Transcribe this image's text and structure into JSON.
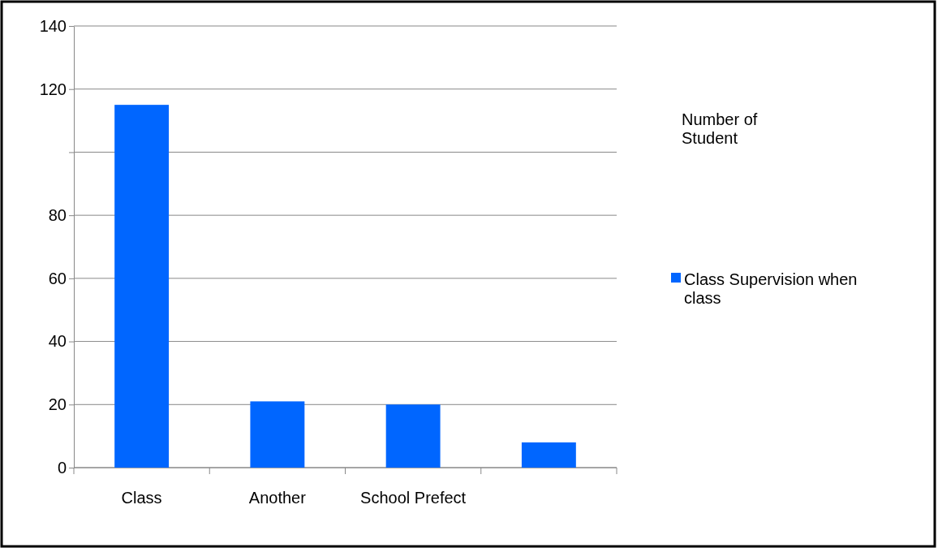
{
  "chart_data": {
    "type": "bar",
    "title": "Number of Student",
    "categories": [
      "Class",
      "Another",
      "School Prefect",
      null
    ],
    "series": [
      {
        "name": "Class Supervision when class",
        "color": "#0066ff",
        "values": [
          115,
          21,
          20,
          8
        ]
      }
    ],
    "ylim": [
      0,
      140
    ],
    "yticks": [
      0,
      20,
      40,
      60,
      80,
      {
        "value": 100,
        "label": null
      },
      120,
      140
    ],
    "grid": "y",
    "legend": "right"
  }
}
